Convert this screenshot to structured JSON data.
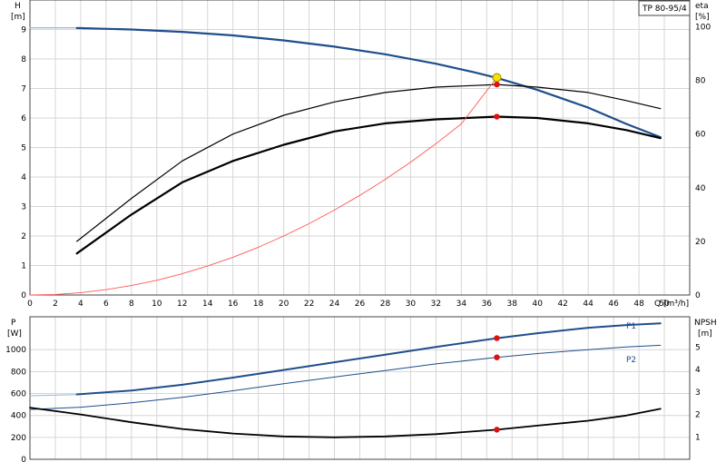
{
  "chart_data": [
    {
      "type": "line",
      "panel": "top",
      "title": "TP 80-95/4",
      "xlabel": "Q [m³/h]",
      "ylabel_left": [
        "H",
        "[m]"
      ],
      "ylabel_right": [
        "eta",
        "[%]"
      ],
      "xlim": [
        0,
        52
      ],
      "ylim_left": [
        0,
        10
      ],
      "ylim_right": [
        0,
        110
      ],
      "x_ticks": [
        "0",
        "2",
        "4",
        "6",
        "8",
        "10",
        "12",
        "14",
        "16",
        "18",
        "20",
        "22",
        "24",
        "26",
        "28",
        "30",
        "32",
        "34",
        "36",
        "38",
        "40",
        "42",
        "44",
        "46",
        "48",
        "50"
      ],
      "y_ticks_left": [
        "0",
        "1",
        "2",
        "3",
        "4",
        "5",
        "6",
        "7",
        "8",
        "9"
      ],
      "y_ticks_right": [
        "0",
        "20",
        "40",
        "60",
        "80",
        "100"
      ],
      "grid": true,
      "series": [
        {
          "role": "H-extension",
          "axis": "left",
          "color": "#9ab3d5",
          "width": 1.2,
          "x": [
            0,
            3.7
          ],
          "y": [
            9.06,
            9.06
          ]
        },
        {
          "role": "H",
          "axis": "left",
          "color": "#1f4e8c",
          "width": 2.2,
          "x": [
            3.7,
            8,
            12,
            16,
            20,
            24,
            28,
            32,
            35,
            36.8,
            40,
            44,
            47,
            49.7
          ],
          "y": [
            9.05,
            9.0,
            8.92,
            8.8,
            8.63,
            8.42,
            8.16,
            7.84,
            7.55,
            7.36,
            6.95,
            6.35,
            5.8,
            5.35
          ]
        },
        {
          "role": "efficiency-upper",
          "axis": "right",
          "color": "#000000",
          "width": 1.2,
          "x": [
            3.7,
            8,
            12,
            16,
            20,
            24,
            28,
            32,
            36.8,
            40,
            44,
            47,
            49.7
          ],
          "y": [
            20,
            36,
            50,
            60,
            67,
            72,
            75.5,
            77.5,
            78.5,
            77.5,
            75.5,
            72.5,
            69.5
          ]
        },
        {
          "role": "efficiency",
          "axis": "right",
          "color": "#000000",
          "width": 2.2,
          "x": [
            3.7,
            8,
            12,
            16,
            20,
            24,
            28,
            32,
            36.8,
            40,
            44,
            47,
            49.7
          ],
          "y": [
            15.5,
            30,
            42,
            50,
            56,
            61,
            64,
            65.5,
            66.5,
            66,
            64,
            61.5,
            58.5
          ]
        },
        {
          "role": "system-curve",
          "axis": "left",
          "color": "#ff5555",
          "width": 0.9,
          "x": [
            0,
            2,
            4,
            6,
            8,
            10,
            12,
            14,
            16,
            18,
            20,
            22,
            24,
            26,
            28,
            30,
            32,
            34,
            36.8
          ],
          "y": [
            0,
            0.02,
            0.08,
            0.18,
            0.32,
            0.5,
            0.72,
            0.98,
            1.28,
            1.62,
            2.0,
            2.42,
            2.88,
            3.38,
            3.92,
            4.5,
            5.13,
            5.8,
            7.37
          ]
        }
      ],
      "markers": [
        {
          "x": 36.8,
          "y": 7.37,
          "axis": "left",
          "color": "#f5e000",
          "stroke": "#9a8a00",
          "r": 4.5
        },
        {
          "x": 36.8,
          "y": 78.5,
          "axis": "right",
          "color": "#e01010",
          "r": 3.2
        },
        {
          "x": 36.8,
          "y": 66.5,
          "axis": "right",
          "color": "#e01010",
          "r": 3.2
        }
      ]
    },
    {
      "type": "line",
      "panel": "bottom",
      "ylabel_left": [
        "P",
        "[W]"
      ],
      "ylabel_right": [
        "NPSH",
        "[m]"
      ],
      "xlim": [
        0,
        52
      ],
      "ylim_left": [
        0,
        1300
      ],
      "ylim_right": [
        0,
        6.35
      ],
      "y_ticks_left": [
        "0",
        "200",
        "400",
        "600",
        "800",
        "1000"
      ],
      "y_ticks_right": [
        "1",
        "2",
        "3",
        "4",
        "5"
      ],
      "grid": true,
      "series": [
        {
          "role": "P1-extension",
          "axis": "left",
          "color": "#9ab3d5",
          "width": 1.0,
          "x": [
            0,
            3.7
          ],
          "y": [
            580,
            590
          ]
        },
        {
          "name": "P1",
          "axis": "left",
          "color": "#1f4e8c",
          "width": 2.0,
          "x": [
            3.7,
            8,
            12,
            16,
            20,
            24,
            28,
            32,
            36.8,
            40,
            44,
            47,
            49.7
          ],
          "y": [
            592,
            628,
            680,
            745,
            815,
            885,
            955,
            1025,
            1105,
            1150,
            1200,
            1225,
            1240
          ]
        },
        {
          "name": "P2",
          "axis": "left",
          "color": "#1f4e8c",
          "width": 1.0,
          "x": [
            0,
            4,
            8,
            12,
            16,
            20,
            24,
            28,
            32,
            36.8,
            40,
            44,
            47,
            49.7
          ],
          "y": [
            455,
            475,
            515,
            565,
            625,
            690,
            750,
            810,
            870,
            930,
            965,
            1000,
            1025,
            1040
          ]
        },
        {
          "role": "NPSH",
          "axis": "right",
          "color": "#000000",
          "width": 1.8,
          "x": [
            0,
            4,
            8,
            12,
            16,
            20,
            24,
            28,
            32,
            36.8,
            40,
            44,
            47,
            49.7
          ],
          "y": [
            2.3,
            2.0,
            1.65,
            1.35,
            1.15,
            1.02,
            0.98,
            1.02,
            1.12,
            1.32,
            1.5,
            1.72,
            1.95,
            2.25
          ]
        }
      ],
      "markers": [
        {
          "x": 36.8,
          "y": 1105,
          "axis": "left",
          "color": "#e01010",
          "r": 3.2
        },
        {
          "x": 36.8,
          "y": 930,
          "axis": "left",
          "color": "#e01010",
          "r": 3.2
        },
        {
          "x": 36.8,
          "y": 1.32,
          "axis": "right",
          "color": "#e01010",
          "r": 3.2
        }
      ]
    }
  ]
}
